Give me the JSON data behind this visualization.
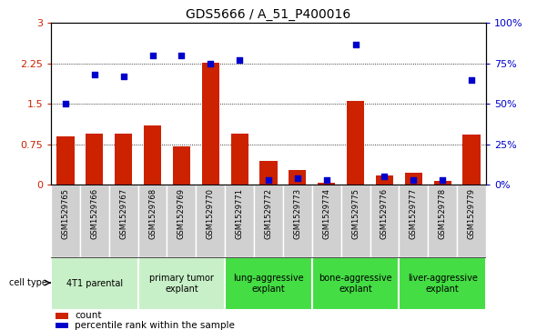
{
  "title": "GDS5666 / A_51_P400016",
  "samples": [
    "GSM1529765",
    "GSM1529766",
    "GSM1529767",
    "GSM1529768",
    "GSM1529769",
    "GSM1529770",
    "GSM1529771",
    "GSM1529772",
    "GSM1529773",
    "GSM1529774",
    "GSM1529775",
    "GSM1529776",
    "GSM1529777",
    "GSM1529778",
    "GSM1529779"
  ],
  "counts": [
    0.9,
    0.95,
    0.95,
    1.1,
    0.72,
    2.27,
    0.95,
    0.45,
    0.28,
    0.04,
    1.55,
    0.18,
    0.23,
    0.08,
    0.93
  ],
  "percentile_ranks": [
    50,
    68,
    67,
    80,
    80,
    75,
    77,
    3,
    4,
    3,
    87,
    5,
    3,
    3,
    65
  ],
  "ylim_left": [
    0,
    3
  ],
  "ylim_right": [
    0,
    100
  ],
  "yticks_left": [
    0,
    0.75,
    1.5,
    2.25,
    3
  ],
  "yticks_right": [
    0,
    25,
    50,
    75,
    100
  ],
  "bar_color": "#cc2200",
  "dot_color": "#0000cc",
  "sample_box_color": "#d0d0d0",
  "cell_types": [
    {
      "label": "4T1 parental",
      "start": 0,
      "end": 3,
      "color": "#c8f0c8"
    },
    {
      "label": "primary tumor\nexplant",
      "start": 3,
      "end": 6,
      "color": "#c8f0c8"
    },
    {
      "label": "lung-aggressive\nexplant",
      "start": 6,
      "end": 9,
      "color": "#44dd44"
    },
    {
      "label": "bone-aggressive\nexplant",
      "start": 9,
      "end": 12,
      "color": "#44dd44"
    },
    {
      "label": "liver-aggressive\nexplant",
      "start": 12,
      "end": 15,
      "color": "#44dd44"
    }
  ],
  "legend_items": [
    {
      "color": "#cc2200",
      "label": "count"
    },
    {
      "color": "#0000cc",
      "label": "percentile rank within the sample"
    }
  ]
}
